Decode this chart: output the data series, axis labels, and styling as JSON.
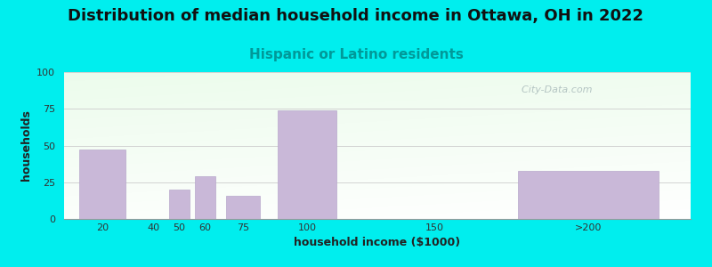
{
  "title": "Distribution of median household income in Ottawa, OH in 2022",
  "subtitle": "Hispanic or Latino residents",
  "xlabel": "household income ($1000)",
  "ylabel": "households",
  "bar_positions": [
    20,
    50,
    60,
    75,
    100,
    210
  ],
  "bar_heights": [
    47,
    20,
    29,
    16,
    74,
    33
  ],
  "bar_widths": [
    18,
    8,
    8,
    13,
    23,
    55
  ],
  "bar_color": "#c9b8d8",
  "bar_edgecolor": "#b8a8cc",
  "ylim": [
    0,
    100
  ],
  "yticks": [
    0,
    25,
    50,
    75,
    100
  ],
  "xtick_labels": [
    "20",
    "40",
    "50",
    "60",
    "75",
    "100",
    "150",
    ">200"
  ],
  "xtick_positions": [
    20,
    40,
    50,
    60,
    75,
    100,
    150,
    210
  ],
  "title_fontsize": 13,
  "subtitle_fontsize": 11,
  "subtitle_color": "#009999",
  "axis_label_fontsize": 9,
  "bg_outer": "#00eeee",
  "watermark": "  City-Data.com",
  "watermark_color": "#aabbbb",
  "xlim_left": 5,
  "xlim_right": 250
}
